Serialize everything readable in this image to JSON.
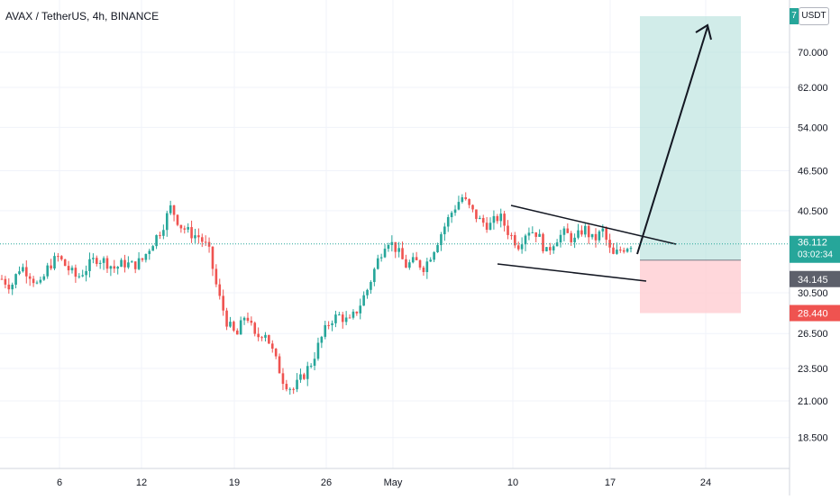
{
  "header": {
    "symbol_title": "AVAX / TetherUS, 4h, BINANCE",
    "unit_label": "USDT",
    "unit_prefix": "7"
  },
  "colors": {
    "up": "#26a69a",
    "down": "#ef5350",
    "target_zone": "#b2dfdb",
    "stop_zone": "#ffcdd2",
    "grid": "#f0f3fa",
    "text": "#131722"
  },
  "price_labels": {
    "current_price": "36.112",
    "countdown": "03:02:34",
    "entry_price": "34.145",
    "stop_price": "28.440"
  },
  "chart_data": {
    "type": "candlestick",
    "y_axis": {
      "scale": "log",
      "ticks": [
        "70.000",
        "62.000",
        "54.000",
        "46.500",
        "40.500",
        "30.500",
        "26.500",
        "23.500",
        "21.000",
        "18.500"
      ],
      "tick_values": [
        70,
        62,
        54,
        46.5,
        40.5,
        30.5,
        26.5,
        23.5,
        21,
        18.5
      ],
      "range": [
        16.5,
        80
      ]
    },
    "x_axis": {
      "ticks": [
        "6",
        "12",
        "19",
        "26",
        "May",
        "10",
        "17",
        "24"
      ]
    },
    "current_price": 36.112,
    "position": {
      "entry": 34.145,
      "stop": 28.44
    },
    "price_path_approx": [
      32,
      31.2,
      33.5,
      32.5,
      31,
      33.5,
      34.5,
      33.2,
      32.1,
      33.2,
      34.4,
      34,
      33.2,
      33.8,
      33.5,
      34.2,
      36.2,
      38,
      41,
      38.5,
      37.5,
      37,
      35.5,
      30.5,
      27.5,
      26.2,
      28.5,
      26,
      26.8,
      24.5,
      22.5,
      21.8,
      22.8,
      24,
      26,
      27.8,
      28.2,
      27.5,
      29,
      31,
      34,
      36.8,
      35.5,
      33.5,
      34,
      33.3,
      35.5,
      38,
      40.5,
      42.5,
      40.5,
      39,
      38.5,
      39.8,
      37.5,
      36,
      38,
      37.5,
      35,
      36.8,
      37.5,
      36.5,
      38.2,
      36.5,
      37.8,
      34.5,
      35.5,
      36.1
    ]
  }
}
